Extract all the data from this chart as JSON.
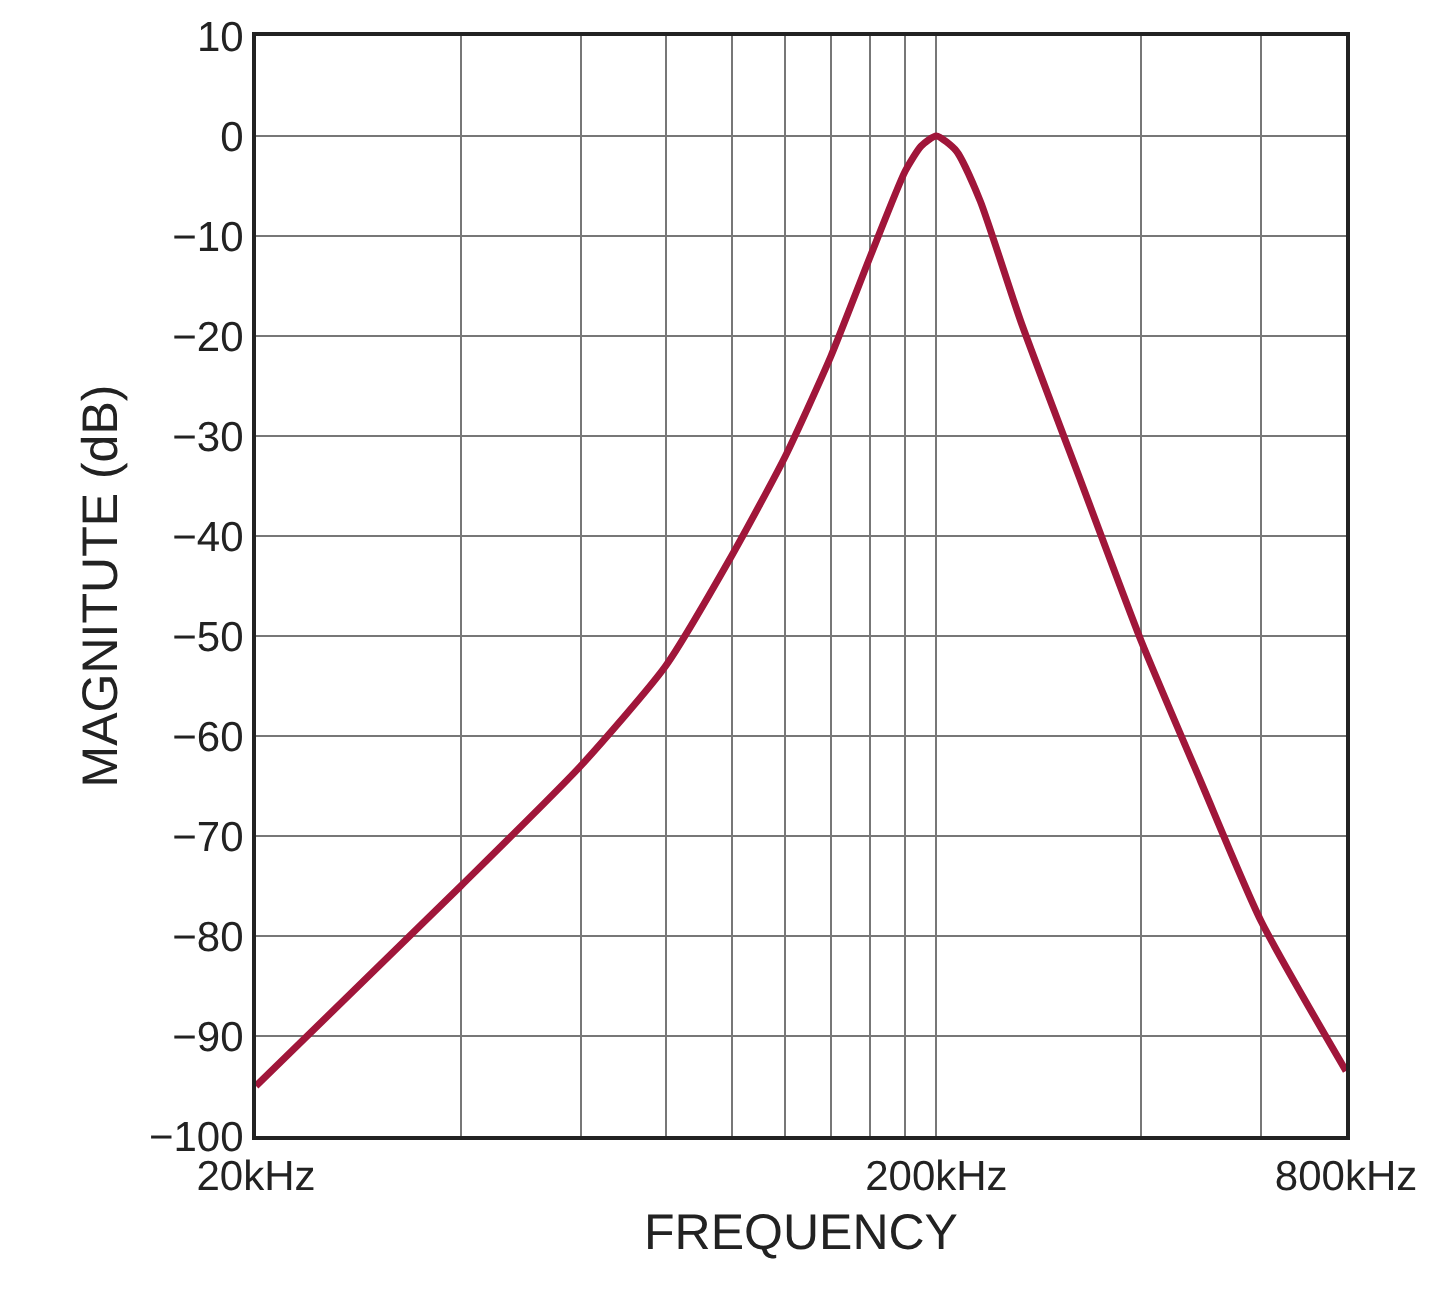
{
  "chart_data": {
    "type": "line",
    "xlabel": "FREQUENCY",
    "ylabel": "MAGNITUTE (dB)",
    "log": "x",
    "grid": true,
    "marker": "none",
    "line_style": "solid",
    "x": [
      20,
      40,
      60,
      80,
      100,
      120,
      140,
      160,
      180,
      190,
      200,
      214,
      232,
      266,
      326,
      400,
      489,
      600,
      800
    ],
    "series": [
      {
        "color": "#a0163a",
        "values": [
          -95,
          -75,
          -63,
          -53,
          -42,
          -32,
          -22,
          -12,
          -3.5,
          -1,
          0,
          -1.5,
          -6.5,
          -18.5,
          -34.5,
          -50.5,
          -64.5,
          -78.5,
          -93.5
        ]
      }
    ],
    "xlim": [
      20,
      800
    ],
    "xticks": [
      {
        "value": 20,
        "label": "20kHz"
      },
      {
        "value": 40,
        "label": null
      },
      {
        "value": 60,
        "label": null
      },
      {
        "value": 80,
        "label": null
      },
      {
        "value": 100,
        "label": null
      },
      {
        "value": 120,
        "label": null
      },
      {
        "value": 140,
        "label": null
      },
      {
        "value": 160,
        "label": null
      },
      {
        "value": 180,
        "label": null
      },
      {
        "value": 200,
        "label": "200kHz"
      },
      {
        "value": 400,
        "label": null
      },
      {
        "value": 600,
        "label": null
      },
      {
        "value": 800,
        "label": "800kHz"
      }
    ],
    "ylim": [
      -100,
      10
    ],
    "yticks": [
      10,
      0,
      {
        "value": -10,
        "label": "−10"
      },
      {
        "value": -20,
        "label": "−20"
      },
      {
        "value": -30,
        "label": "−30"
      },
      {
        "value": -40,
        "label": "−40"
      },
      {
        "value": -50,
        "label": "−50"
      },
      {
        "value": -60,
        "label": "−60"
      },
      {
        "value": -70,
        "label": "−70"
      },
      {
        "value": -80,
        "label": "−80"
      },
      {
        "value": -90,
        "label": "−90"
      },
      {
        "value": -100,
        "label": "−100"
      }
    ]
  }
}
